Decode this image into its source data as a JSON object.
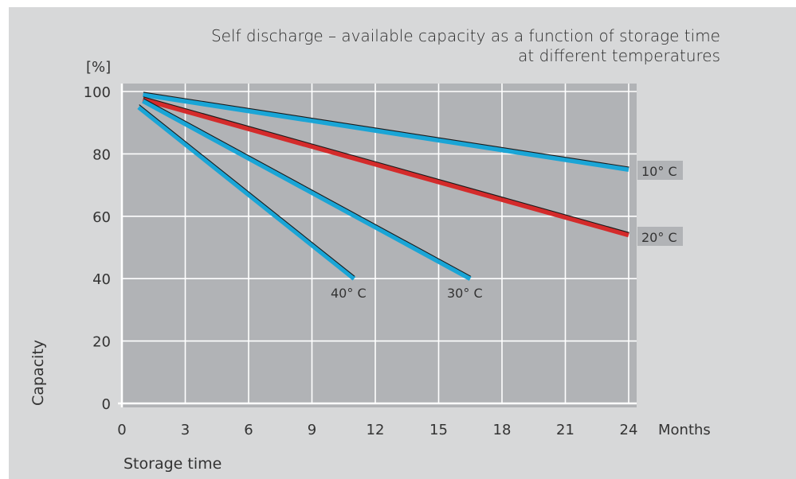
{
  "chart_data": {
    "type": "line",
    "title_lines": [
      "Self discharge – available capacity as a function of storage time",
      "at different temperatures"
    ],
    "xlabel": "Storage time",
    "x_unit": "Months",
    "ylabel": "Capacity",
    "y_unit": "[%]",
    "xlim": [
      0,
      24
    ],
    "ylim": [
      0,
      100
    ],
    "x_ticks": [
      0,
      3,
      6,
      9,
      12,
      15,
      18,
      21,
      24
    ],
    "y_ticks": [
      0,
      20,
      40,
      60,
      80,
      100
    ],
    "grid": true,
    "series": [
      {
        "name": "10° C",
        "color": "#1aa5d6",
        "x": [
          1,
          24
        ],
        "y": [
          99,
          75
        ]
      },
      {
        "name": "20° C",
        "color": "#d42b2b",
        "x": [
          1,
          24
        ],
        "y": [
          97.5,
          54
        ]
      },
      {
        "name": "30° C",
        "color": "#1aa5d6",
        "x": [
          1,
          16.5
        ],
        "y": [
          97,
          40
        ]
      },
      {
        "name": "40° C",
        "color": "#1aa5d6",
        "x": [
          0.8,
          11
        ],
        "y": [
          95,
          40
        ]
      }
    ]
  }
}
